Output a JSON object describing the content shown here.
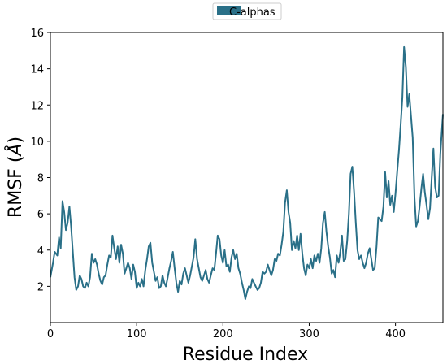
{
  "chart_data": {
    "type": "line",
    "title": "",
    "xlabel": "Residue Index",
    "ylabel": "RMSF",
    "ylabel_unit": "Å",
    "xlim": [
      0,
      455
    ],
    "ylim": [
      0,
      16
    ],
    "x_ticks": [
      0,
      100,
      200,
      300,
      400
    ],
    "y_ticks": [
      2,
      4,
      6,
      8,
      10,
      12,
      14,
      16
    ],
    "grid": false,
    "legend_position": "top-center",
    "series": [
      {
        "name": "C-alphas",
        "color": "#2a7088",
        "points": [
          [
            0,
            2.5
          ],
          [
            3,
            3.3
          ],
          [
            5,
            3.9
          ],
          [
            8,
            3.7
          ],
          [
            10,
            4.7
          ],
          [
            12,
            4.1
          ],
          [
            14,
            6.7
          ],
          [
            16,
            6.1
          ],
          [
            18,
            5.1
          ],
          [
            20,
            5.5
          ],
          [
            22,
            6.4
          ],
          [
            24,
            5.3
          ],
          [
            26,
            3.9
          ],
          [
            28,
            2.5
          ],
          [
            30,
            1.8
          ],
          [
            32,
            2.0
          ],
          [
            34,
            2.6
          ],
          [
            36,
            2.4
          ],
          [
            38,
            2.0
          ],
          [
            40,
            1.9
          ],
          [
            42,
            2.2
          ],
          [
            44,
            2.0
          ],
          [
            46,
            2.5
          ],
          [
            48,
            3.8
          ],
          [
            50,
            3.3
          ],
          [
            52,
            3.5
          ],
          [
            54,
            3.2
          ],
          [
            56,
            2.7
          ],
          [
            58,
            2.3
          ],
          [
            60,
            2.1
          ],
          [
            62,
            2.5
          ],
          [
            64,
            2.6
          ],
          [
            66,
            3.2
          ],
          [
            68,
            3.7
          ],
          [
            70,
            3.6
          ],
          [
            72,
            4.8
          ],
          [
            74,
            4.1
          ],
          [
            76,
            3.5
          ],
          [
            78,
            4.2
          ],
          [
            80,
            3.3
          ],
          [
            82,
            4.3
          ],
          [
            84,
            3.8
          ],
          [
            86,
            2.7
          ],
          [
            88,
            3.0
          ],
          [
            90,
            3.3
          ],
          [
            92,
            3.0
          ],
          [
            94,
            2.4
          ],
          [
            96,
            3.2
          ],
          [
            98,
            2.8
          ],
          [
            100,
            1.9
          ],
          [
            102,
            2.2
          ],
          [
            104,
            2.0
          ],
          [
            106,
            2.4
          ],
          [
            108,
            2.0
          ],
          [
            110,
            2.9
          ],
          [
            112,
            3.5
          ],
          [
            114,
            4.2
          ],
          [
            116,
            4.4
          ],
          [
            118,
            3.3
          ],
          [
            120,
            2.8
          ],
          [
            122,
            2.3
          ],
          [
            124,
            2.5
          ],
          [
            126,
            1.9
          ],
          [
            128,
            2.0
          ],
          [
            130,
            2.6
          ],
          [
            132,
            2.2
          ],
          [
            134,
            2.0
          ],
          [
            136,
            2.5
          ],
          [
            138,
            3.0
          ],
          [
            140,
            3.4
          ],
          [
            142,
            3.9
          ],
          [
            144,
            3.0
          ],
          [
            146,
            2.2
          ],
          [
            148,
            1.7
          ],
          [
            150,
            2.3
          ],
          [
            152,
            2.1
          ],
          [
            154,
            2.7
          ],
          [
            156,
            3.0
          ],
          [
            158,
            2.6
          ],
          [
            160,
            2.2
          ],
          [
            162,
            2.6
          ],
          [
            164,
            3.1
          ],
          [
            166,
            3.6
          ],
          [
            168,
            4.6
          ],
          [
            170,
            3.5
          ],
          [
            172,
            3.0
          ],
          [
            174,
            2.5
          ],
          [
            176,
            2.3
          ],
          [
            178,
            2.6
          ],
          [
            180,
            2.9
          ],
          [
            182,
            2.4
          ],
          [
            184,
            2.2
          ],
          [
            186,
            2.6
          ],
          [
            188,
            3.0
          ],
          [
            190,
            2.9
          ],
          [
            192,
            3.8
          ],
          [
            194,
            4.8
          ],
          [
            196,
            4.6
          ],
          [
            198,
            3.7
          ],
          [
            200,
            3.3
          ],
          [
            202,
            4.0
          ],
          [
            204,
            3.1
          ],
          [
            206,
            3.2
          ],
          [
            208,
            2.8
          ],
          [
            210,
            3.6
          ],
          [
            212,
            4.0
          ],
          [
            214,
            3.5
          ],
          [
            216,
            3.8
          ],
          [
            218,
            3.0
          ],
          [
            220,
            2.7
          ],
          [
            222,
            2.2
          ],
          [
            224,
            1.8
          ],
          [
            226,
            1.3
          ],
          [
            228,
            1.7
          ],
          [
            230,
            2.0
          ],
          [
            232,
            1.9
          ],
          [
            234,
            2.4
          ],
          [
            236,
            2.2
          ],
          [
            238,
            2.0
          ],
          [
            240,
            1.8
          ],
          [
            242,
            1.9
          ],
          [
            244,
            2.2
          ],
          [
            246,
            2.8
          ],
          [
            248,
            2.7
          ],
          [
            250,
            2.8
          ],
          [
            252,
            3.2
          ],
          [
            254,
            2.9
          ],
          [
            256,
            2.6
          ],
          [
            258,
            2.9
          ],
          [
            260,
            3.5
          ],
          [
            262,
            3.4
          ],
          [
            264,
            3.8
          ],
          [
            266,
            3.7
          ],
          [
            268,
            4.3
          ],
          [
            270,
            5.0
          ],
          [
            272,
            6.6
          ],
          [
            274,
            7.3
          ],
          [
            276,
            6.1
          ],
          [
            278,
            5.5
          ],
          [
            280,
            4.0
          ],
          [
            282,
            4.5
          ],
          [
            284,
            4.1
          ],
          [
            286,
            4.8
          ],
          [
            288,
            4.0
          ],
          [
            290,
            4.9
          ],
          [
            292,
            3.8
          ],
          [
            294,
            3.0
          ],
          [
            296,
            2.6
          ],
          [
            298,
            3.2
          ],
          [
            300,
            3.0
          ],
          [
            302,
            3.5
          ],
          [
            304,
            3.0
          ],
          [
            306,
            3.7
          ],
          [
            308,
            3.4
          ],
          [
            310,
            3.8
          ],
          [
            312,
            3.3
          ],
          [
            314,
            4.1
          ],
          [
            316,
            5.5
          ],
          [
            318,
            6.1
          ],
          [
            320,
            5.0
          ],
          [
            322,
            4.2
          ],
          [
            324,
            3.6
          ],
          [
            326,
            2.7
          ],
          [
            328,
            2.9
          ],
          [
            330,
            2.5
          ],
          [
            332,
            3.7
          ],
          [
            334,
            3.3
          ],
          [
            336,
            3.9
          ],
          [
            338,
            4.8
          ],
          [
            340,
            3.4
          ],
          [
            342,
            3.5
          ],
          [
            344,
            4.5
          ],
          [
            346,
            6.0
          ],
          [
            348,
            8.2
          ],
          [
            350,
            8.6
          ],
          [
            352,
            7.2
          ],
          [
            354,
            5.5
          ],
          [
            356,
            4.0
          ],
          [
            358,
            3.5
          ],
          [
            360,
            3.7
          ],
          [
            362,
            3.3
          ],
          [
            364,
            3.0
          ],
          [
            366,
            3.3
          ],
          [
            368,
            3.8
          ],
          [
            370,
            4.1
          ],
          [
            372,
            3.5
          ],
          [
            374,
            2.9
          ],
          [
            376,
            3.0
          ],
          [
            378,
            4.2
          ],
          [
            380,
            5.8
          ],
          [
            382,
            5.7
          ],
          [
            384,
            5.6
          ],
          [
            386,
            6.4
          ],
          [
            388,
            8.3
          ],
          [
            390,
            6.9
          ],
          [
            392,
            7.8
          ],
          [
            394,
            6.5
          ],
          [
            396,
            7.0
          ],
          [
            398,
            6.1
          ],
          [
            400,
            7.1
          ],
          [
            402,
            8.3
          ],
          [
            404,
            9.5
          ],
          [
            406,
            10.9
          ],
          [
            408,
            12.4
          ],
          [
            410,
            15.2
          ],
          [
            412,
            14.1
          ],
          [
            414,
            11.9
          ],
          [
            416,
            12.6
          ],
          [
            418,
            11.4
          ],
          [
            420,
            10.2
          ],
          [
            422,
            6.9
          ],
          [
            424,
            5.3
          ],
          [
            426,
            5.6
          ],
          [
            428,
            6.4
          ],
          [
            430,
            7.4
          ],
          [
            432,
            8.2
          ],
          [
            434,
            7.2
          ],
          [
            436,
            6.5
          ],
          [
            438,
            5.7
          ],
          [
            440,
            6.3
          ],
          [
            442,
            8.0
          ],
          [
            444,
            9.6
          ],
          [
            446,
            7.5
          ],
          [
            448,
            6.9
          ],
          [
            450,
            7.0
          ],
          [
            452,
            9.3
          ],
          [
            455,
            11.5
          ]
        ]
      }
    ]
  }
}
